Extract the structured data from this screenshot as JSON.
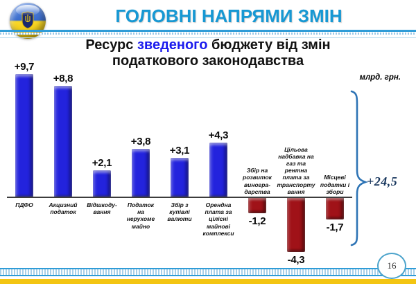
{
  "header": {
    "title": "ГОЛОВНІ НАПРЯМИ ЗМІН",
    "logo": "ukraine-state-emblem"
  },
  "subtitle": {
    "part1": "Ресурс ",
    "highlight": "зведеного",
    "part2": " бюджету від змін",
    "line2": "податкового законодавства",
    "highlight_color": "#1b1bee"
  },
  "chart_data": {
    "type": "bar",
    "title": "Ресурс зведеного бюджету від змін податкового законодавства",
    "unit": "млрд. грн.",
    "total_label": "+24,5",
    "legend_position": "none",
    "grid": false,
    "categories": [
      "ПДФО",
      "Акцизний податок",
      "Відшкодування",
      "Податок на нерухоме майно",
      "Збір з купівлі валюти",
      "Орендна плата за цілісні майнові комплекси",
      "Збір на розвиток виноградарства",
      "Цільова надбавка на газ та рентна плата за транспортування",
      "Місцеві податки і збори"
    ],
    "tick_labels": [
      "ПДФО",
      "Акцизний\nподаток",
      "Відшкоду-\nвання",
      "Податок\nна\nнерухоме\nмайно",
      "Збір з\nкупівлі\nвалюти",
      "Орендна\nплата за\nцілісні\nмайнові\nкомплекси",
      "Збір на\nрозвиток\nвиногра-\nдарства",
      "Цільова\nнадбавка на\nгаз та\nрентна\nплата за\nтранспорту\nвання",
      "Місцеві\nподатки і\nзбори"
    ],
    "values": [
      9.7,
      8.8,
      2.1,
      3.8,
      3.1,
      4.3,
      -1.2,
      -4.3,
      -1.7
    ],
    "value_labels": [
      "+9,7",
      "+8,8",
      "+2,1",
      "+3,8",
      "+3,1",
      "+4,3",
      "-1,2",
      "-4,3",
      "-1,7"
    ],
    "positive_color": "#2323dd",
    "negative_color": "#a01218",
    "brace_color": "#2e74b5",
    "total_color": "#17365d",
    "ylim": [
      -5,
      10
    ]
  },
  "footer": {
    "page_number": "16"
  }
}
